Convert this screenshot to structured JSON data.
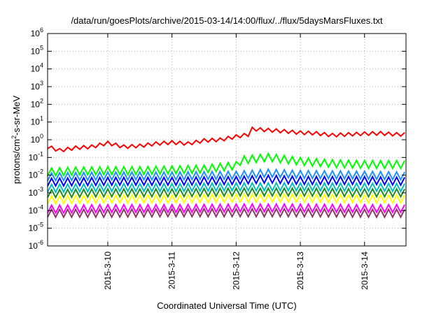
{
  "chart_data": {
    "type": "line",
    "title": "/data/run/goesPlots/archive/2015-03-14/14:00/flux/../flux/5daysMarsFluxes.txt",
    "xlabel": "Coordinated Universal Time (UTC)",
    "ylabel_parts": [
      "protons/cm",
      "2",
      "-s-sr-MeV"
    ],
    "y_scale": "log",
    "ylim": [
      1e-06,
      1000000.0
    ],
    "xlim": [
      "2015-03-09T01:30",
      "2015-03-14T15:30"
    ],
    "grid": true,
    "legend": "none",
    "y_ticks": [
      {
        "base": "10",
        "exp": "-6"
      },
      {
        "base": "10",
        "exp": "-5"
      },
      {
        "base": "10",
        "exp": "-4"
      },
      {
        "base": "10",
        "exp": "-3"
      },
      {
        "base": "10",
        "exp": "-2"
      },
      {
        "base": "10",
        "exp": "-1"
      },
      {
        "base": "10",
        "exp": "0"
      },
      {
        "base": "10",
        "exp": "1"
      },
      {
        "base": "10",
        "exp": "2"
      },
      {
        "base": "10",
        "exp": "3"
      },
      {
        "base": "10",
        "exp": "4"
      },
      {
        "base": "10",
        "exp": "5"
      },
      {
        "base": "10",
        "exp": "6"
      }
    ],
    "x_ticks": [
      {
        "label": "2015-3-10",
        "value": "2015-03-10T00:00"
      },
      {
        "label": "2015-3-11",
        "value": "2015-03-11T00:00"
      },
      {
        "label": "2015-3-12",
        "value": "2015-03-12T00:00"
      },
      {
        "label": "2015-3-13",
        "value": "2015-03-13T00:00"
      },
      {
        "label": "2015-3-14",
        "value": "2015-03-14T00:00"
      }
    ],
    "series": [
      {
        "color": "#ff0000",
        "values": [
          [
            "2015-03-09T01:30",
            0.4
          ],
          [
            "2015-03-09T06:00",
            0.25
          ],
          [
            "2015-03-09T12:00",
            0.35
          ],
          [
            "2015-03-09T18:00",
            0.4
          ],
          [
            "2015-03-10T00:00",
            0.65
          ],
          [
            "2015-03-10T06:00",
            0.4
          ],
          [
            "2015-03-10T12:00",
            0.45
          ],
          [
            "2015-03-10T18:00",
            0.6
          ],
          [
            "2015-03-11T00:00",
            0.7
          ],
          [
            "2015-03-11T06:00",
            0.6
          ],
          [
            "2015-03-11T12:00",
            0.9
          ],
          [
            "2015-03-11T18:00",
            1.0
          ],
          [
            "2015-03-12T00:00",
            1.5
          ],
          [
            "2015-03-12T05:00",
            2.0
          ],
          [
            "2015-03-12T06:00",
            4.0
          ],
          [
            "2015-03-12T12:00",
            3.5
          ],
          [
            "2015-03-12T18:00",
            3.0
          ],
          [
            "2015-03-13T00:00",
            2.5
          ],
          [
            "2015-03-13T06:00",
            2.3
          ],
          [
            "2015-03-13T12:00",
            1.8
          ],
          [
            "2015-03-13T18:00",
            2.0
          ],
          [
            "2015-03-14T00:00",
            2.2
          ],
          [
            "2015-03-14T06:00",
            2.3
          ],
          [
            "2015-03-14T12:00",
            2.0
          ],
          [
            "2015-03-14T15:30",
            2.0
          ]
        ]
      },
      {
        "color": "#00ff00",
        "values": [
          [
            "2015-03-09T01:30",
            0.015
          ],
          [
            "2015-03-09T12:00",
            0.017
          ],
          [
            "2015-03-10T00:00",
            0.018
          ],
          [
            "2015-03-10T12:00",
            0.018
          ],
          [
            "2015-03-11T00:00",
            0.02
          ],
          [
            "2015-03-11T12:00",
            0.022
          ],
          [
            "2015-03-11T20:00",
            0.03
          ],
          [
            "2015-03-12T00:00",
            0.035
          ],
          [
            "2015-03-12T02:00",
            0.07
          ],
          [
            "2015-03-12T12:00",
            0.1
          ],
          [
            "2015-03-13T00:00",
            0.06
          ],
          [
            "2015-03-13T12:00",
            0.045
          ],
          [
            "2015-03-14T00:00",
            0.04
          ],
          [
            "2015-03-14T15:30",
            0.04
          ]
        ]
      },
      {
        "color": "#1e90ff",
        "values": [
          [
            "2015-03-09T01:30",
            0.008
          ],
          [
            "2015-03-10T00:00",
            0.009
          ],
          [
            "2015-03-11T00:00",
            0.009
          ],
          [
            "2015-03-12T00:00",
            0.01
          ],
          [
            "2015-03-12T12:00",
            0.013
          ],
          [
            "2015-03-13T00:00",
            0.011
          ],
          [
            "2015-03-14T00:00",
            0.01
          ],
          [
            "2015-03-14T15:30",
            0.009
          ]
        ]
      },
      {
        "color": "#0000ff",
        "values": [
          [
            "2015-03-09T01:30",
            0.004
          ],
          [
            "2015-03-10T00:00",
            0.0045
          ],
          [
            "2015-03-11T00:00",
            0.0045
          ],
          [
            "2015-03-12T00:00",
            0.005
          ],
          [
            "2015-03-12T12:00",
            0.006
          ],
          [
            "2015-03-13T00:00",
            0.005
          ],
          [
            "2015-03-14T00:00",
            0.005
          ],
          [
            "2015-03-14T15:30",
            0.0045
          ]
        ]
      },
      {
        "color": "#00bfbf",
        "values": [
          [
            "2015-03-09T01:30",
            0.0018
          ],
          [
            "2015-03-10T00:00",
            0.002
          ],
          [
            "2015-03-11T00:00",
            0.002
          ],
          [
            "2015-03-12T00:00",
            0.0022
          ],
          [
            "2015-03-13T00:00",
            0.0022
          ],
          [
            "2015-03-14T00:00",
            0.0021
          ],
          [
            "2015-03-14T15:30",
            0.002
          ]
        ]
      },
      {
        "color": "#228b22",
        "values": [
          [
            "2015-03-09T01:30",
            0.0009
          ],
          [
            "2015-03-10T00:00",
            0.001
          ],
          [
            "2015-03-11T00:00",
            0.001
          ],
          [
            "2015-03-12T00:00",
            0.0011
          ],
          [
            "2015-03-13T00:00",
            0.0011
          ],
          [
            "2015-03-14T00:00",
            0.001
          ],
          [
            "2015-03-14T15:30",
            0.001
          ]
        ]
      },
      {
        "color": "#ffff00",
        "values": [
          [
            "2015-03-09T01:30",
            0.0004
          ],
          [
            "2015-03-10T00:00",
            0.00045
          ],
          [
            "2015-03-11T00:00",
            0.00045
          ],
          [
            "2015-03-12T00:00",
            0.0005
          ],
          [
            "2015-03-13T00:00",
            0.0005
          ],
          [
            "2015-03-14T00:00",
            0.00045
          ],
          [
            "2015-03-14T15:30",
            0.00045
          ]
        ]
      },
      {
        "color": "#ff00ff",
        "values": [
          [
            "2015-03-09T01:30",
            0.00012
          ],
          [
            "2015-03-10T00:00",
            0.00013
          ],
          [
            "2015-03-11T00:00",
            0.00013
          ],
          [
            "2015-03-12T00:00",
            0.00014
          ],
          [
            "2015-03-13T00:00",
            0.00014
          ],
          [
            "2015-03-14T00:00",
            0.00013
          ],
          [
            "2015-03-14T15:30",
            0.00013
          ]
        ]
      },
      {
        "color": "#8b3a62",
        "values": [
          [
            "2015-03-09T01:30",
            7e-05
          ],
          [
            "2015-03-10T00:00",
            7e-05
          ],
          [
            "2015-03-11T00:00",
            7.5e-05
          ],
          [
            "2015-03-12T00:00",
            7.5e-05
          ],
          [
            "2015-03-13T00:00",
            7.5e-05
          ],
          [
            "2015-03-14T00:00",
            7e-05
          ],
          [
            "2015-03-14T15:30",
            7e-05
          ]
        ]
      }
    ]
  }
}
